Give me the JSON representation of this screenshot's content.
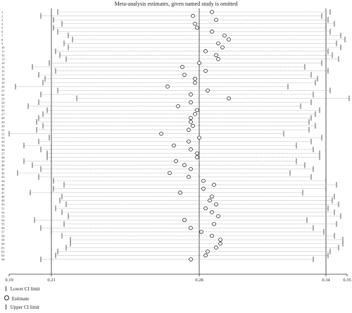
{
  "chart_data": {
    "type": "scatter",
    "title": "Meta-analysis estimates, given named study is omitted",
    "x_ticks": [
      0.19,
      0.21,
      0.28,
      0.34,
      0.35
    ],
    "xlim": [
      0.19,
      0.35
    ],
    "reference_lines": [
      0.21,
      0.28,
      0.34
    ],
    "row_labels": [
      "1",
      "2",
      "3",
      "4",
      "5",
      "6",
      "7",
      "8",
      "9",
      "10",
      "11",
      "12",
      "13",
      "14",
      "15",
      "16",
      "17",
      "18",
      "19",
      "20",
      "21",
      "22",
      "23",
      "24",
      "25",
      "26",
      "27",
      "28",
      "29",
      "30",
      "31",
      "32",
      "33",
      "34",
      "35",
      "36",
      "37",
      "38",
      "39",
      "40",
      "41",
      "42",
      "43",
      "44",
      "45",
      "46",
      "47",
      "48",
      "49",
      "50",
      "51",
      "52",
      "53",
      "54",
      "55",
      "56",
      "57",
      "58",
      "59",
      "60",
      "61",
      "62",
      "63",
      "64"
    ],
    "estimate": [
      0.286,
      0.277,
      0.288,
      0.278,
      0.279,
      0.286,
      0.292,
      0.294,
      0.289,
      0.291,
      0.283,
      0.288,
      0.289,
      0.28,
      0.272,
      0.283,
      0.273,
      0.278,
      0.278,
      0.265,
      0.284,
      0.276,
      0.294,
      0.276,
      0.27,
      0.279,
      0.278,
      0.276,
      0.276,
      0.277,
      0.275,
      0.262,
      0.28,
      0.275,
      0.268,
      0.276,
      0.279,
      0.279,
      0.269,
      0.273,
      0.276,
      0.266,
      0.275,
      0.282,
      0.287,
      0.282,
      0.271,
      0.286,
      0.285,
      0.288,
      0.283,
      0.286,
      0.289,
      0.273,
      0.287,
      0.276,
      0.281,
      0.286,
      0.29,
      0.29,
      0.288,
      0.284,
      0.283,
      0.276
    ],
    "lower": [
      0.213,
      0.205,
      0.211,
      0.215,
      0.211,
      0.213,
      0.218,
      0.22,
      0.216,
      0.218,
      0.212,
      0.214,
      0.217,
      0.209,
      0.201,
      0.212,
      0.204,
      0.207,
      0.206,
      0.193,
      0.213,
      0.205,
      0.222,
      0.204,
      0.199,
      0.208,
      0.206,
      0.204,
      0.203,
      0.206,
      0.203,
      0.19,
      0.209,
      0.204,
      0.197,
      0.205,
      0.208,
      0.208,
      0.197,
      0.201,
      0.205,
      0.194,
      0.204,
      0.211,
      0.216,
      0.211,
      0.2,
      0.215,
      0.214,
      0.217,
      0.212,
      0.215,
      0.218,
      0.202,
      0.216,
      0.205,
      0.21,
      0.215,
      0.219,
      0.219,
      0.217,
      0.213,
      0.212,
      0.205
    ],
    "upper": [
      0.342,
      0.338,
      0.341,
      0.344,
      0.34,
      0.342,
      0.347,
      0.349,
      0.345,
      0.347,
      0.341,
      0.343,
      0.346,
      0.338,
      0.33,
      0.341,
      0.333,
      0.336,
      0.335,
      0.322,
      0.342,
      0.334,
      0.351,
      0.333,
      0.328,
      0.337,
      0.335,
      0.333,
      0.332,
      0.335,
      0.332,
      0.32,
      0.338,
      0.333,
      0.326,
      0.334,
      0.337,
      0.337,
      0.326,
      0.33,
      0.334,
      0.323,
      0.333,
      0.34,
      0.345,
      0.34,
      0.329,
      0.344,
      0.343,
      0.346,
      0.341,
      0.344,
      0.347,
      0.331,
      0.345,
      0.334,
      0.339,
      0.344,
      0.348,
      0.348,
      0.346,
      0.342,
      0.341,
      0.334
    ],
    "legend": {
      "lower": "Lower CI limit",
      "estimate": "Estimate",
      "upper": "Upper CI limit"
    }
  }
}
